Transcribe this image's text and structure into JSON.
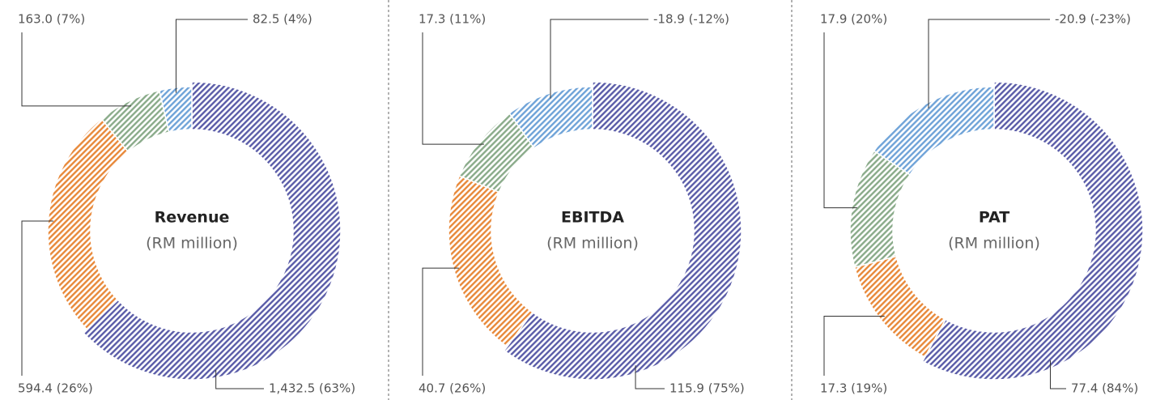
{
  "chart_data": [
    {
      "type": "donut",
      "title": "Revenue",
      "subtitle": "(RM million)",
      "values": [
        1432.5,
        594.4,
        163.0,
        82.5
      ],
      "value_labels": [
        "1,432.5 (63%)",
        "594.4 (26%)",
        "163.0 (7%)",
        "82.5 (4%)"
      ],
      "colors": [
        "#5a5ca8",
        "#e8893a",
        "#8aab8a",
        "#6fa3d8"
      ]
    },
    {
      "type": "donut",
      "title": "EBITDA",
      "subtitle": "(RM million)",
      "values": [
        115.9,
        40.7,
        17.3,
        -18.9
      ],
      "value_labels": [
        "115.9 (75%)",
        "40.7 (26%)",
        "17.3 (11%)",
        "-18.9 (-12%)"
      ],
      "colors": [
        "#5a5ca8",
        "#e8893a",
        "#8aab8a",
        "#6fa3d8"
      ]
    },
    {
      "type": "donut",
      "title": "PAT",
      "subtitle": "(RM million)",
      "values": [
        77.4,
        17.3,
        17.9,
        -20.9
      ],
      "value_labels": [
        "77.4 (84%)",
        "17.3 (19%)",
        "17.9 (20%)",
        "-20.9 (-23%)"
      ],
      "colors": [
        "#5a5ca8",
        "#e8893a",
        "#8aab8a",
        "#6fa3d8"
      ]
    }
  ]
}
